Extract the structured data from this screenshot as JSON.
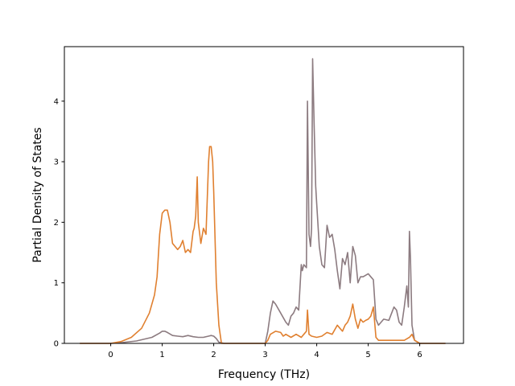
{
  "chart_data": {
    "type": "line",
    "title": "",
    "xlabel": "Frequency (THz)",
    "ylabel": "Partial Density of States",
    "xlim": [
      -0.9,
      6.85
    ],
    "ylim": [
      0,
      4.9
    ],
    "grid": false,
    "x_ticks": [
      0,
      1,
      2,
      3,
      4,
      5,
      6
    ],
    "x_tick_labels": [
      "0",
      "1",
      "2",
      "3",
      "4",
      "5",
      "6"
    ],
    "y_ticks": [
      0,
      1,
      2,
      3,
      4
    ],
    "y_tick_labels": [
      "0",
      "1",
      "2",
      "3",
      "4"
    ],
    "series": [
      {
        "color": "#8c7b80",
        "x": [
          -0.6,
          0.0,
          0.2,
          0.5,
          0.8,
          0.95,
          1.0,
          1.05,
          1.1,
          1.2,
          1.3,
          1.4,
          1.5,
          1.6,
          1.7,
          1.8,
          1.9,
          1.95,
          2.0,
          2.05,
          2.1,
          2.2,
          2.5,
          3.0,
          3.05,
          3.1,
          3.15,
          3.2,
          3.3,
          3.4,
          3.45,
          3.5,
          3.55,
          3.6,
          3.65,
          3.7,
          3.72,
          3.75,
          3.8,
          3.82,
          3.85,
          3.88,
          3.9,
          3.92,
          3.95,
          3.98,
          4.0,
          4.05,
          4.1,
          4.15,
          4.2,
          4.25,
          4.3,
          4.35,
          4.4,
          4.45,
          4.5,
          4.55,
          4.6,
          4.65,
          4.7,
          4.75,
          4.8,
          4.85,
          4.9,
          5.0,
          5.05,
          5.1,
          5.15,
          5.2,
          5.3,
          5.4,
          5.5,
          5.55,
          5.6,
          5.65,
          5.7,
          5.75,
          5.78,
          5.8,
          5.82,
          5.85,
          5.9,
          6.0,
          6.5
        ],
        "y": [
          0,
          0,
          0.01,
          0.04,
          0.1,
          0.17,
          0.2,
          0.2,
          0.18,
          0.13,
          0.12,
          0.11,
          0.13,
          0.11,
          0.1,
          0.1,
          0.12,
          0.13,
          0.12,
          0.08,
          0.02,
          0,
          0,
          0,
          0.2,
          0.5,
          0.7,
          0.65,
          0.5,
          0.35,
          0.3,
          0.45,
          0.5,
          0.6,
          0.55,
          1.3,
          1.2,
          1.3,
          1.25,
          4.0,
          1.8,
          1.6,
          1.9,
          4.7,
          3.6,
          2.6,
          2.3,
          1.6,
          1.3,
          1.25,
          1.95,
          1.75,
          1.8,
          1.55,
          1.2,
          0.9,
          1.4,
          1.3,
          1.5,
          1.0,
          1.6,
          1.45,
          1.0,
          1.1,
          1.1,
          1.15,
          1.1,
          1.05,
          0.4,
          0.3,
          0.4,
          0.38,
          0.6,
          0.55,
          0.35,
          0.3,
          0.6,
          0.95,
          0.6,
          1.85,
          1.4,
          0.3,
          0.05,
          0,
          0
        ]
      },
      {
        "color": "#e08030",
        "x": [
          -0.6,
          0.0,
          0.2,
          0.4,
          0.6,
          0.75,
          0.85,
          0.9,
          0.95,
          1.0,
          1.05,
          1.1,
          1.15,
          1.2,
          1.25,
          1.3,
          1.35,
          1.4,
          1.45,
          1.5,
          1.55,
          1.6,
          1.62,
          1.65,
          1.68,
          1.7,
          1.75,
          1.8,
          1.85,
          1.9,
          1.92,
          1.95,
          1.98,
          2.0,
          2.05,
          2.1,
          2.15,
          2.5,
          3.0,
          3.05,
          3.1,
          3.2,
          3.3,
          3.35,
          3.4,
          3.5,
          3.6,
          3.7,
          3.75,
          3.8,
          3.82,
          3.85,
          3.9,
          4.0,
          4.1,
          4.2,
          4.3,
          4.4,
          4.45,
          4.5,
          4.55,
          4.6,
          4.65,
          4.7,
          4.75,
          4.8,
          4.85,
          4.9,
          4.95,
          5.0,
          5.05,
          5.1,
          5.15,
          5.2,
          5.4,
          5.6,
          5.7,
          5.8,
          5.85,
          5.9,
          6.0,
          6.5
        ],
        "y": [
          0,
          0,
          0.03,
          0.1,
          0.25,
          0.5,
          0.8,
          1.1,
          1.8,
          2.15,
          2.2,
          2.2,
          2.0,
          1.65,
          1.6,
          1.55,
          1.6,
          1.7,
          1.5,
          1.55,
          1.5,
          1.85,
          1.9,
          2.1,
          2.75,
          2.0,
          1.65,
          1.9,
          1.8,
          3.0,
          3.25,
          3.25,
          3.0,
          2.5,
          1.0,
          0.3,
          0,
          0,
          0,
          0.05,
          0.15,
          0.2,
          0.18,
          0.12,
          0.15,
          0.1,
          0.15,
          0.1,
          0.15,
          0.2,
          0.55,
          0.15,
          0.12,
          0.1,
          0.12,
          0.18,
          0.15,
          0.3,
          0.25,
          0.2,
          0.3,
          0.35,
          0.45,
          0.65,
          0.4,
          0.25,
          0.4,
          0.35,
          0.38,
          0.4,
          0.45,
          0.6,
          0.1,
          0.05,
          0.05,
          0.05,
          0.05,
          0.1,
          0.15,
          0.05,
          0,
          0
        ]
      }
    ]
  }
}
